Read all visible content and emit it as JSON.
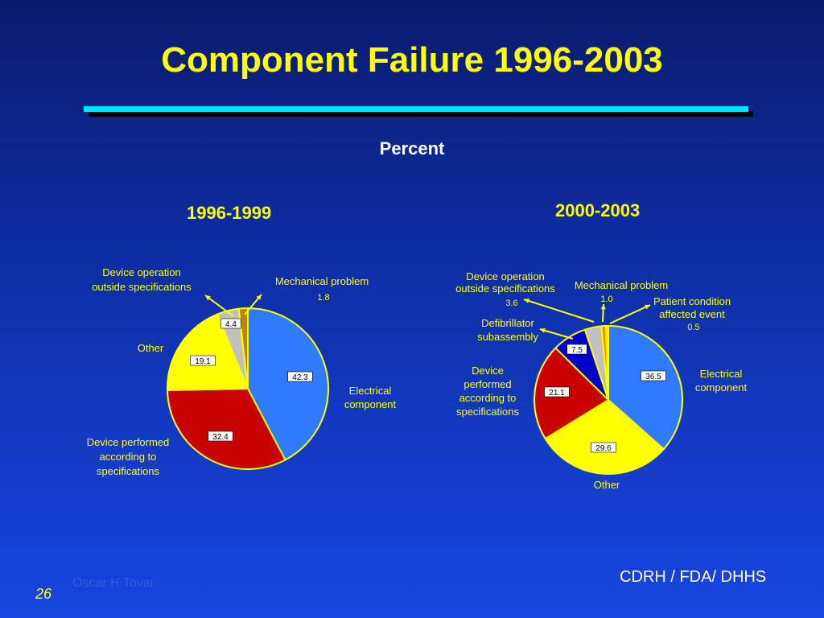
{
  "title": "Component Failure 1996-2003",
  "subtitle": "Percent",
  "footer": {
    "org": "CDRH / FDA/ DHHS",
    "author": "Oscar H Tovar",
    "page": "26"
  },
  "colors": {
    "title": "#ffff00",
    "rule": "#00e5ff",
    "label": "#ffff00",
    "outline": "#ffff00"
  },
  "chart_data": [
    {
      "type": "pie",
      "title": "1996-1999",
      "slices": [
        {
          "label": "Electrical component",
          "value": 42.3,
          "value_text": "42.3",
          "color": "#2f7bff",
          "show_value_box": true
        },
        {
          "label": "Device performed according to specifications",
          "value": 32.4,
          "value_text": "32.4",
          "color": "#c80000",
          "show_value_box": true
        },
        {
          "label": "Other",
          "value": 19.1,
          "value_text": "19.1",
          "color": "#ffff00",
          "show_value_box": true
        },
        {
          "label": "Device operation outside specifications",
          "value": 4.4,
          "value_text": "4.4",
          "color": "#c0c0c0",
          "show_value_box": true
        },
        {
          "label": "Mechanical problem",
          "value": 1.8,
          "value_text": "1.8",
          "color": "#b8860b",
          "show_value_box": false
        }
      ]
    },
    {
      "type": "pie",
      "title": "2000-2003",
      "slices": [
        {
          "label": "Electrical component",
          "value": 36.5,
          "value_text": "36.5",
          "color": "#2f7bff",
          "show_value_box": true
        },
        {
          "label": "Other",
          "value": 29.6,
          "value_text": "29.6",
          "color": "#ffff00",
          "show_value_box": true
        },
        {
          "label": "Device performed according to specifications",
          "value": 21.1,
          "value_text": "21.1",
          "color": "#c80000",
          "show_value_box": true
        },
        {
          "label": "Defibrillator subassembly",
          "value": 7.5,
          "value_text": "7.5",
          "color": "#0000c8",
          "show_value_box": true
        },
        {
          "label": "Device operation outside specifications",
          "value": 3.6,
          "value_text": "3.6",
          "color": "#c0c0c0",
          "show_value_box": false
        },
        {
          "label": "Mechanical problem",
          "value": 1.0,
          "value_text": "1.0",
          "color": "#ff8c00",
          "show_value_box": false
        },
        {
          "label": "Patient condition affected event",
          "value": 0.5,
          "value_text": "0.5",
          "color": "#ffd700",
          "show_value_box": false
        }
      ]
    }
  ]
}
